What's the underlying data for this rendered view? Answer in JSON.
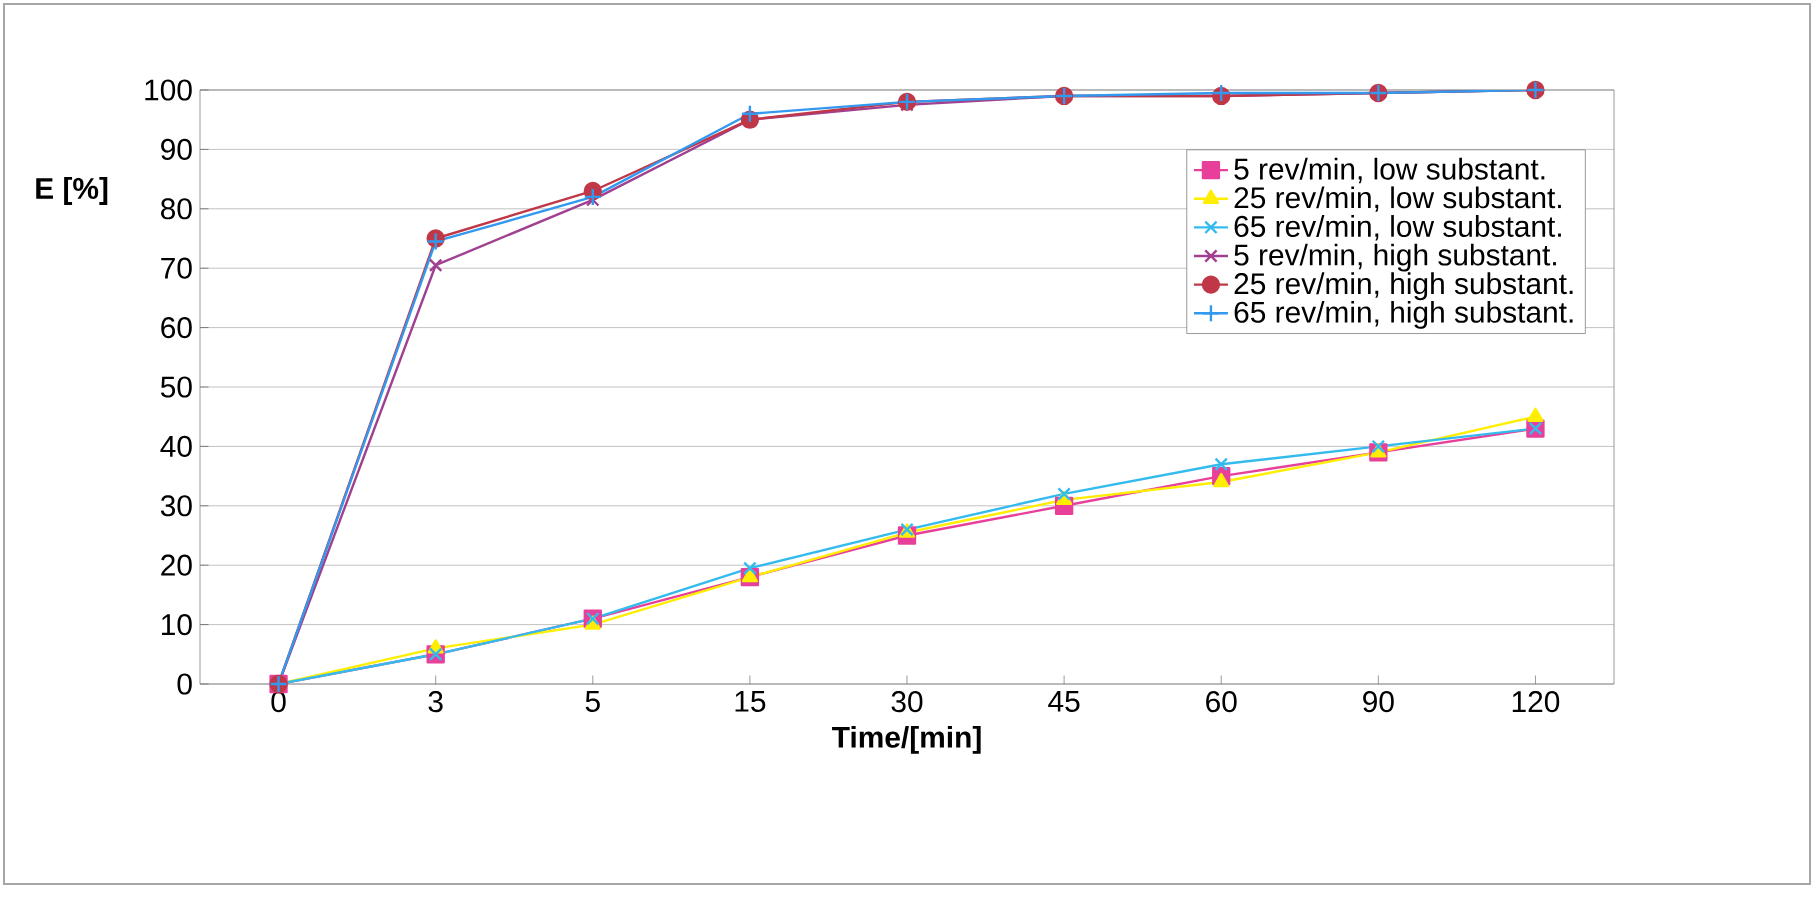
{
  "chart_data": {
    "type": "line",
    "xlabel": "Time/[min]",
    "ylabel": "E [%]",
    "categories": [
      "0",
      "3",
      "5",
      "15",
      "30",
      "45",
      "60",
      "90",
      "120"
    ],
    "ylim": [
      0,
      100
    ],
    "yticks": [
      0,
      10,
      20,
      30,
      40,
      50,
      60,
      70,
      80,
      90,
      100
    ],
    "grid": "y",
    "legend": "right",
    "series": [
      {
        "name": "5 rev/min, low substant.",
        "color": "#e8409a",
        "marker": "square",
        "values": [
          0,
          5,
          11,
          18,
          25,
          30,
          35,
          39,
          43
        ]
      },
      {
        "name": "25 rev/min, low substant.",
        "color": "#ffee00",
        "marker": "triangle",
        "values": [
          0,
          6,
          10,
          18,
          25.5,
          31,
          34,
          39,
          45
        ]
      },
      {
        "name": "65 rev/min, low substant.",
        "color": "#33bbee",
        "marker": "cross",
        "values": [
          0,
          5,
          11,
          19.5,
          26,
          32,
          37,
          40,
          43
        ]
      },
      {
        "name": "5 rev/min, high substant.",
        "color": "#a04090",
        "marker": "cross",
        "values": [
          0,
          70.5,
          81.5,
          95,
          97.5,
          99,
          99,
          99.5,
          100
        ]
      },
      {
        "name": "25 rev/min, high substant.",
        "color": "#c03848",
        "marker": "circle",
        "values": [
          0,
          75,
          83,
          95,
          98,
          99,
          99,
          99.5,
          100
        ]
      },
      {
        "name": "65 rev/min, high substant.",
        "color": "#3399ee",
        "marker": "plus",
        "values": [
          0,
          74.5,
          82,
          96,
          98,
          99,
          99.5,
          99.5,
          100
        ]
      }
    ]
  }
}
